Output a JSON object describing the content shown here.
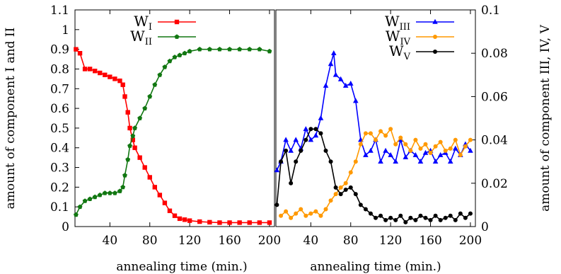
{
  "chart_data": [
    {
      "type": "line",
      "xlabel": "annealing time (min.)",
      "ylabel": "amount of component I and II",
      "xlim": [
        5,
        205
      ],
      "ylim": [
        0,
        1.1
      ],
      "xticks": [
        40,
        80,
        120,
        160,
        200
      ],
      "yticks": [
        0,
        0.1,
        0.2,
        0.3,
        0.4,
        0.5,
        0.6,
        0.7,
        0.8,
        0.9,
        1,
        1.1
      ],
      "legend_position": "top-right",
      "grid": false,
      "series": [
        {
          "name_base": "W",
          "name_sub": "I",
          "color": "#ff0000",
          "marker": "square",
          "x": [
            6,
            10,
            15,
            20,
            25,
            30,
            35,
            40,
            45,
            50,
            53,
            55,
            58,
            60,
            63,
            65,
            70,
            75,
            80,
            85,
            90,
            95,
            100,
            105,
            110,
            115,
            120,
            130,
            140,
            150,
            160,
            170,
            180,
            190,
            200
          ],
          "y": [
            0.9,
            0.88,
            0.8,
            0.8,
            0.79,
            0.78,
            0.77,
            0.76,
            0.75,
            0.74,
            0.72,
            0.66,
            0.58,
            0.5,
            0.44,
            0.4,
            0.35,
            0.3,
            0.25,
            0.2,
            0.16,
            0.12,
            0.08,
            0.055,
            0.04,
            0.035,
            0.03,
            0.025,
            0.022,
            0.02,
            0.02,
            0.02,
            0.02,
            0.02,
            0.02
          ]
        },
        {
          "name_base": "W",
          "name_sub": "II",
          "color": "#117711",
          "marker": "pentagon",
          "x": [
            6,
            10,
            15,
            20,
            25,
            30,
            35,
            40,
            45,
            50,
            53,
            55,
            58,
            60,
            63,
            65,
            70,
            75,
            80,
            85,
            90,
            95,
            100,
            105,
            110,
            115,
            120,
            130,
            140,
            150,
            160,
            170,
            180,
            190,
            200
          ],
          "y": [
            0.06,
            0.1,
            0.13,
            0.14,
            0.15,
            0.16,
            0.17,
            0.17,
            0.17,
            0.18,
            0.2,
            0.26,
            0.34,
            0.41,
            0.46,
            0.5,
            0.55,
            0.6,
            0.66,
            0.72,
            0.77,
            0.81,
            0.84,
            0.86,
            0.87,
            0.88,
            0.89,
            0.9,
            0.9,
            0.9,
            0.9,
            0.9,
            0.9,
            0.9,
            0.89
          ]
        }
      ]
    },
    {
      "type": "line",
      "xlabel": "annealing time (min.)",
      "ylabel": "amount of component III, IV, V",
      "xlim": [
        5,
        205
      ],
      "ylim": [
        0,
        0.1
      ],
      "xticks": [
        40,
        80,
        120,
        160,
        200
      ],
      "yticks": [
        0,
        0.02,
        0.04,
        0.06,
        0.08,
        0.1
      ],
      "legend_position": "top-right",
      "grid": false,
      "series": [
        {
          "name_base": "W",
          "name_sub": "III",
          "color": "#0000ff",
          "marker": "triangle",
          "x": [
            6,
            10,
            15,
            20,
            25,
            30,
            35,
            40,
            45,
            50,
            55,
            60,
            63,
            65,
            70,
            75,
            80,
            85,
            90,
            95,
            100,
            105,
            110,
            115,
            120,
            125,
            130,
            135,
            140,
            145,
            150,
            155,
            160,
            165,
            170,
            175,
            180,
            185,
            190,
            195,
            200
          ],
          "y": [
            0.026,
            0.03,
            0.04,
            0.035,
            0.04,
            0.036,
            0.045,
            0.04,
            0.042,
            0.05,
            0.065,
            0.075,
            0.08,
            0.07,
            0.068,
            0.065,
            0.066,
            0.058,
            0.04,
            0.033,
            0.035,
            0.04,
            0.03,
            0.035,
            0.033,
            0.03,
            0.04,
            0.032,
            0.035,
            0.033,
            0.03,
            0.034,
            0.035,
            0.03,
            0.033,
            0.034,
            0.03,
            0.036,
            0.033,
            0.038,
            0.035
          ]
        },
        {
          "name_base": "W",
          "name_sub": "IV",
          "color": "#ff9900",
          "marker": "circle",
          "x": [
            10,
            15,
            20,
            25,
            30,
            35,
            40,
            45,
            50,
            55,
            60,
            65,
            70,
            75,
            80,
            85,
            90,
            95,
            100,
            105,
            110,
            115,
            120,
            125,
            130,
            135,
            140,
            145,
            150,
            155,
            160,
            165,
            170,
            175,
            180,
            185,
            190,
            195,
            200
          ],
          "y": [
            0.005,
            0.007,
            0.004,
            0.006,
            0.008,
            0.005,
            0.006,
            0.007,
            0.005,
            0.008,
            0.012,
            0.015,
            0.018,
            0.02,
            0.025,
            0.03,
            0.038,
            0.043,
            0.043,
            0.04,
            0.044,
            0.042,
            0.045,
            0.038,
            0.041,
            0.038,
            0.035,
            0.04,
            0.036,
            0.038,
            0.034,
            0.037,
            0.039,
            0.035,
            0.036,
            0.04,
            0.033,
            0.037,
            0.04
          ]
        },
        {
          "name_base": "W",
          "name_sub": "V",
          "color": "#000000",
          "marker": "circle",
          "x": [
            6,
            10,
            15,
            20,
            25,
            30,
            35,
            40,
            45,
            50,
            55,
            60,
            65,
            70,
            75,
            80,
            85,
            90,
            95,
            100,
            105,
            110,
            115,
            120,
            125,
            130,
            135,
            140,
            145,
            150,
            155,
            160,
            165,
            170,
            175,
            180,
            185,
            190,
            195,
            200
          ],
          "y": [
            0.01,
            0.03,
            0.035,
            0.02,
            0.03,
            0.035,
            0.04,
            0.045,
            0.045,
            0.043,
            0.035,
            0.03,
            0.018,
            0.015,
            0.017,
            0.018,
            0.015,
            0.01,
            0.008,
            0.006,
            0.004,
            0.005,
            0.003,
            0.004,
            0.003,
            0.005,
            0.002,
            0.004,
            0.003,
            0.005,
            0.004,
            0.003,
            0.005,
            0.003,
            0.004,
            0.005,
            0.003,
            0.006,
            0.004,
            0.006
          ]
        }
      ]
    }
  ]
}
